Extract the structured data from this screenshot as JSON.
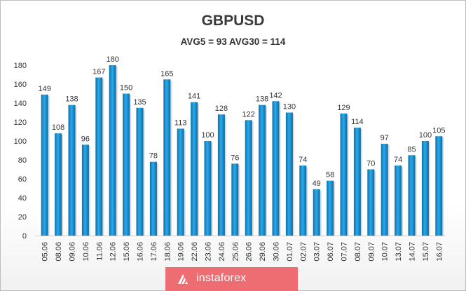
{
  "chart_data": {
    "type": "bar",
    "title": "GBPUSD",
    "subtitle": "AVG5 = 93 AVG30 = 114",
    "categories": [
      "05.06",
      "08.06",
      "09.06",
      "10.06",
      "11.06",
      "12.06",
      "15.06",
      "16.06",
      "17.06",
      "18.06",
      "19.06",
      "22.06",
      "23.06",
      "24.06",
      "25.06",
      "26.06",
      "29.06",
      "30.06",
      "01.07",
      "02.07",
      "03.07",
      "06.07",
      "07.07",
      "08.07",
      "09.07",
      "10.07",
      "13.07",
      "14.07",
      "15.07",
      "16.07"
    ],
    "values": [
      149,
      108,
      138,
      96,
      167,
      180,
      150,
      135,
      78,
      165,
      113,
      141,
      100,
      128,
      76,
      122,
      138,
      142,
      130,
      74,
      49,
      58,
      129,
      114,
      70,
      97,
      74,
      85,
      100,
      105
    ],
    "ylim": [
      0,
      180
    ],
    "yticks": [
      0,
      20,
      40,
      60,
      80,
      100,
      120,
      140,
      160,
      180
    ],
    "bar_color": "#1e9bd8",
    "grid": false,
    "data_labels": true
  },
  "banner": {
    "text": "instaforex",
    "color": "#ee6d73",
    "logo_icon": "instaforex-logo-icon"
  }
}
